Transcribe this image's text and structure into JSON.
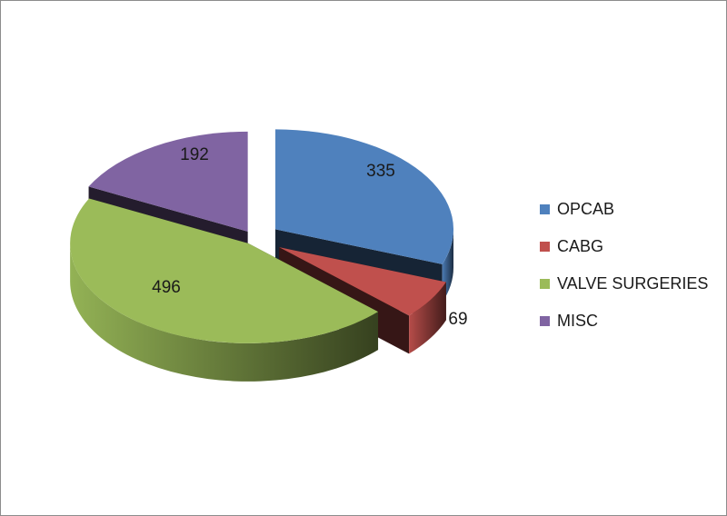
{
  "chart_data": {
    "type": "pie",
    "style": "3d-exploded",
    "categories": [
      "OPCAB",
      "CABG",
      "VALVE SURGERIES",
      "MISC"
    ],
    "values": [
      335,
      69,
      496,
      192
    ],
    "colors": [
      "#4f81bd",
      "#c0504d",
      "#9bbb59",
      "#8064a2"
    ],
    "data_labels": [
      "335",
      "69",
      "496",
      "192"
    ],
    "legend_position": "right"
  }
}
